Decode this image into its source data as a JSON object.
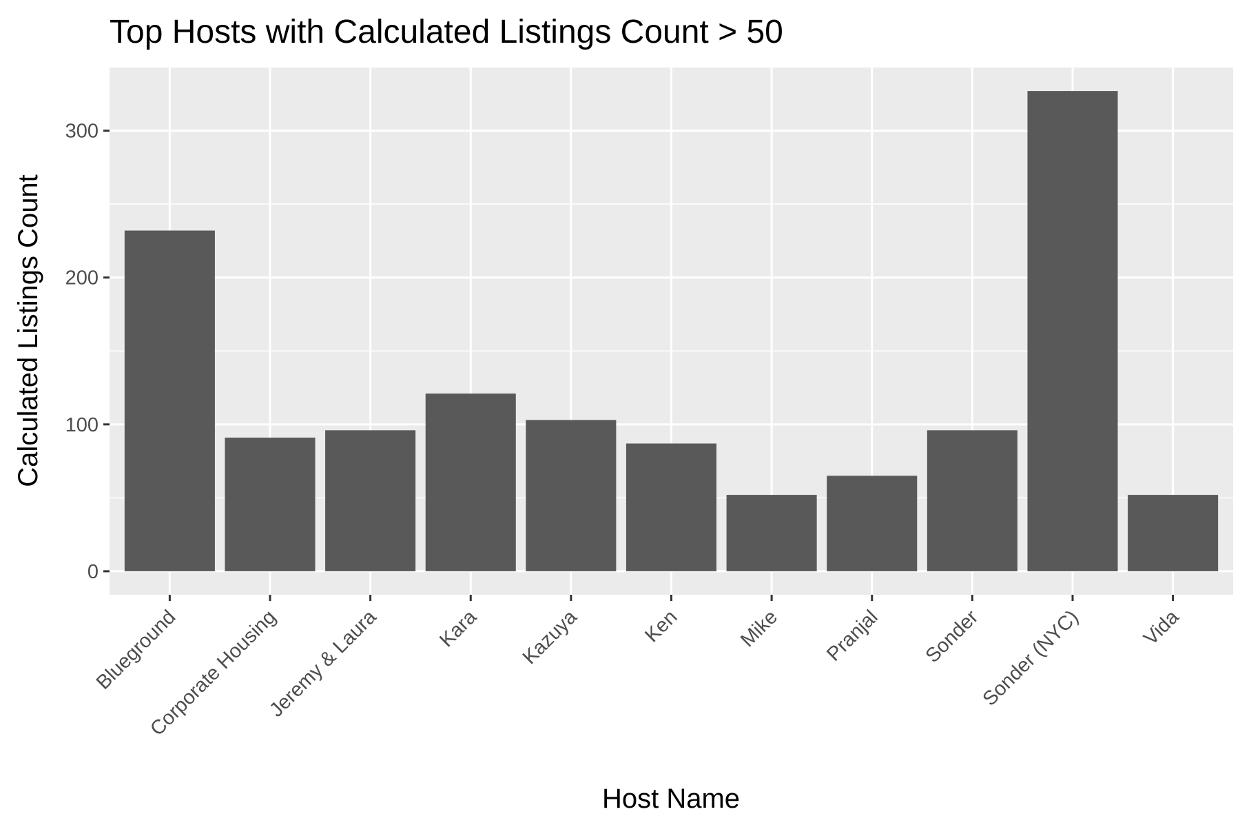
{
  "chart_data": {
    "type": "bar",
    "title": "Top Hosts with Calculated Listings Count > 50",
    "xlabel": "Host Name",
    "ylabel": "Calculated Listings Count",
    "categories": [
      "Blueground",
      "Corporate Housing",
      "Jeremy & Laura",
      "Kara",
      "Kazuya",
      "Ken",
      "Mike",
      "Pranjal",
      "Sonder",
      "Sonder (NYC)",
      "Vida"
    ],
    "values": [
      232,
      91,
      96,
      121,
      103,
      87,
      52,
      65,
      96,
      327,
      52
    ],
    "ylim": [
      -16,
      343
    ],
    "yticks": [
      0,
      100,
      200,
      300
    ],
    "grid": true,
    "legend": "none",
    "colors": {
      "bar": "#595959",
      "panel": "#ebebeb",
      "grid": "#ffffff",
      "tick": "#333333"
    }
  }
}
